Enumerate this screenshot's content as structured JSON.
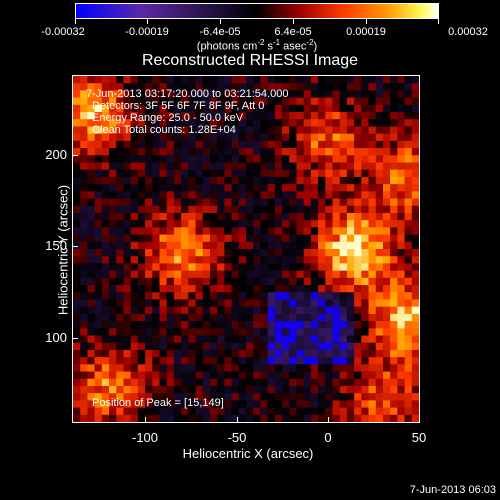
{
  "colorbar": {
    "ticks": [
      "-0.00032",
      "-0.00019",
      "-6.4e-05",
      "6.4e-05",
      "0.00019",
      "0.00032"
    ],
    "unit_prefix": "(photons cm",
    "unit_exp1": "-2",
    "unit_mid": " s",
    "unit_exp2": "-1",
    "unit_mid2": " asec",
    "unit_exp3": "-2",
    "unit_suffix": ")",
    "colors": [
      "#0000ff",
      "#5a2aa8",
      "#000000",
      "#a00000",
      "#ff3c00",
      "#ff9a00",
      "#ffff60",
      "#ffffff"
    ]
  },
  "chart_data": {
    "type": "heatmap",
    "title": "Reconstructed RHESSI Image",
    "xlabel": "Heliocentric X (arcsec)",
    "ylabel": "Heliocentric Y (arcsec)",
    "xlim": [
      -140,
      50
    ],
    "ylim": [
      55,
      245
    ],
    "xticks": [
      -100,
      -50,
      0,
      50
    ],
    "yticks": [
      100,
      150,
      200
    ],
    "zlim": [
      -0.00032,
      0.00032
    ],
    "peak_position": [
      15,
      149
    ],
    "hotspots": [
      {
        "x": 15,
        "y": 149,
        "value": 0.00032
      },
      {
        "x": -80,
        "y": 148,
        "value": 0.00024
      },
      {
        "x": -130,
        "y": 225,
        "value": 0.00028
      },
      {
        "x": 0,
        "y": 210,
        "value": 0.0002
      },
      {
        "x": 45,
        "y": 190,
        "value": 0.00022
      },
      {
        "x": 45,
        "y": 110,
        "value": 0.0003
      },
      {
        "x": -120,
        "y": 75,
        "value": 0.00022
      },
      {
        "x": 30,
        "y": 65,
        "value": 0.00018
      }
    ]
  },
  "info": {
    "time_range": "7-Jun-2013 03:17:20.000 to 03:21:54.000",
    "detectors": "Detectors: 3F 5F 6F 7F 8F 9F, Att 0",
    "energy": "Energy Range: 25.0 - 50.0 keV",
    "method": "Clean     Total counts: 1.28E+04",
    "peak": "Position of Peak = [15,149]"
  },
  "footer": "7-Jun-2013 06:03"
}
